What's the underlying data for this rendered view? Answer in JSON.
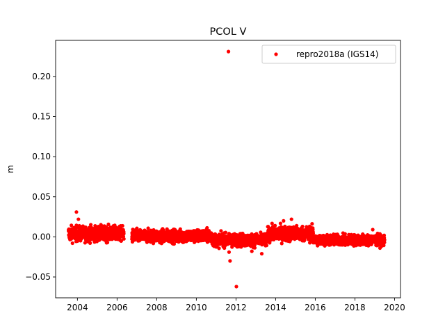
{
  "chart_data": {
    "type": "scatter",
    "title": "PCOL V",
    "xlabel": "",
    "ylabel": "m",
    "xlim": [
      2002.9,
      2020.3
    ],
    "ylim": [
      -0.076,
      0.245
    ],
    "xticks": [
      2004,
      2006,
      2008,
      2010,
      2012,
      2014,
      2016,
      2018,
      2020
    ],
    "xtick_labels": [
      "2004",
      "2006",
      "2008",
      "2010",
      "2012",
      "2014",
      "2016",
      "2018",
      "2020"
    ],
    "yticks": [
      -0.05,
      0.0,
      0.05,
      0.1,
      0.15,
      0.2
    ],
    "ytick_labels": [
      "−0.05",
      "0.00",
      "0.05",
      "0.10",
      "0.15",
      "0.20"
    ],
    "grid": false,
    "legend": {
      "position": "top-right",
      "entries": [
        "repro2018a (IGS14)"
      ]
    },
    "series": [
      {
        "name": "repro2018a (IGS14)",
        "color": "#ff0000",
        "marker": "circle",
        "segments": [
          {
            "start": 2003.55,
            "end": 2006.35,
            "step": 0.005,
            "center": 0.004,
            "spread": 0.0075
          },
          {
            "start": 2006.75,
            "end": 2010.8,
            "step": 0.005,
            "center": 0.001,
            "spread": 0.0065
          },
          {
            "start": 2010.8,
            "end": 2013.6,
            "step": 0.005,
            "center": -0.004,
            "spread": 0.0065
          },
          {
            "start": 2013.6,
            "end": 2015.9,
            "step": 0.005,
            "center": 0.004,
            "spread": 0.0075
          },
          {
            "start": 2015.9,
            "end": 2019.5,
            "step": 0.005,
            "center": -0.004,
            "spread": 0.0055
          }
        ],
        "outliers": [
          {
            "x": 2003.95,
            "y": 0.031
          },
          {
            "x": 2004.05,
            "y": 0.022
          },
          {
            "x": 2011.62,
            "y": 0.231
          },
          {
            "x": 2011.7,
            "y": -0.03
          },
          {
            "x": 2011.65,
            "y": -0.019
          },
          {
            "x": 2012.02,
            "y": -0.062
          },
          {
            "x": 2014.8,
            "y": 0.022
          },
          {
            "x": 2014.4,
            "y": 0.02
          },
          {
            "x": 2013.3,
            "y": -0.021
          },
          {
            "x": 2012.8,
            "y": -0.018
          },
          {
            "x": 2018.9,
            "y": 0.009
          }
        ]
      }
    ]
  }
}
